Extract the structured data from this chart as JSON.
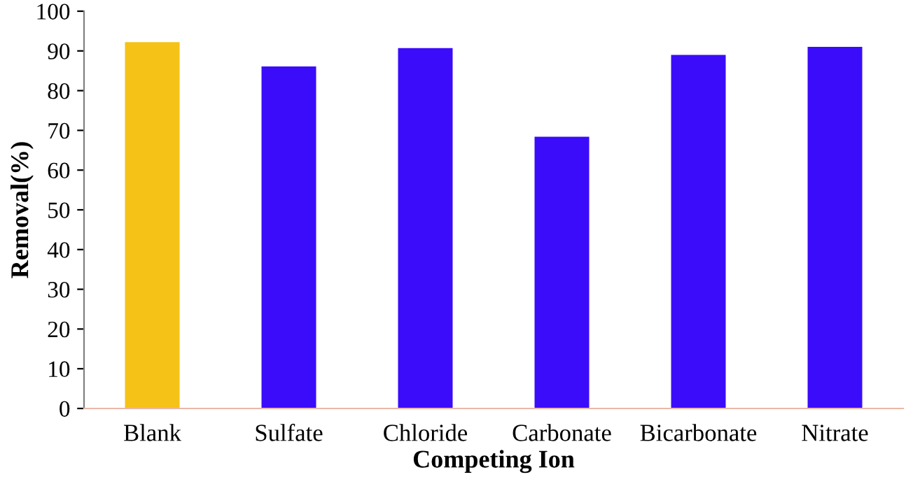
{
  "chart_data": {
    "type": "bar",
    "xlabel": "Competing Ion",
    "ylabel": "Removal(%)",
    "categories": [
      "Blank",
      "Sulfate",
      "Chloride",
      "Carbonate",
      "Bicarbonate",
      "Nitrate"
    ],
    "values": [
      92.2,
      86.1,
      90.7,
      68.4,
      89.0,
      91.0
    ],
    "colors": [
      "#f5c218",
      "#3a0cfa",
      "#3a0cfa",
      "#3a0cfa",
      "#3a0cfa",
      "#3a0cfa"
    ],
    "ylim": [
      0,
      100
    ],
    "yticks": [
      0,
      10,
      20,
      30,
      40,
      50,
      60,
      70,
      80,
      90,
      100
    ],
    "grid": false,
    "legend": false
  }
}
